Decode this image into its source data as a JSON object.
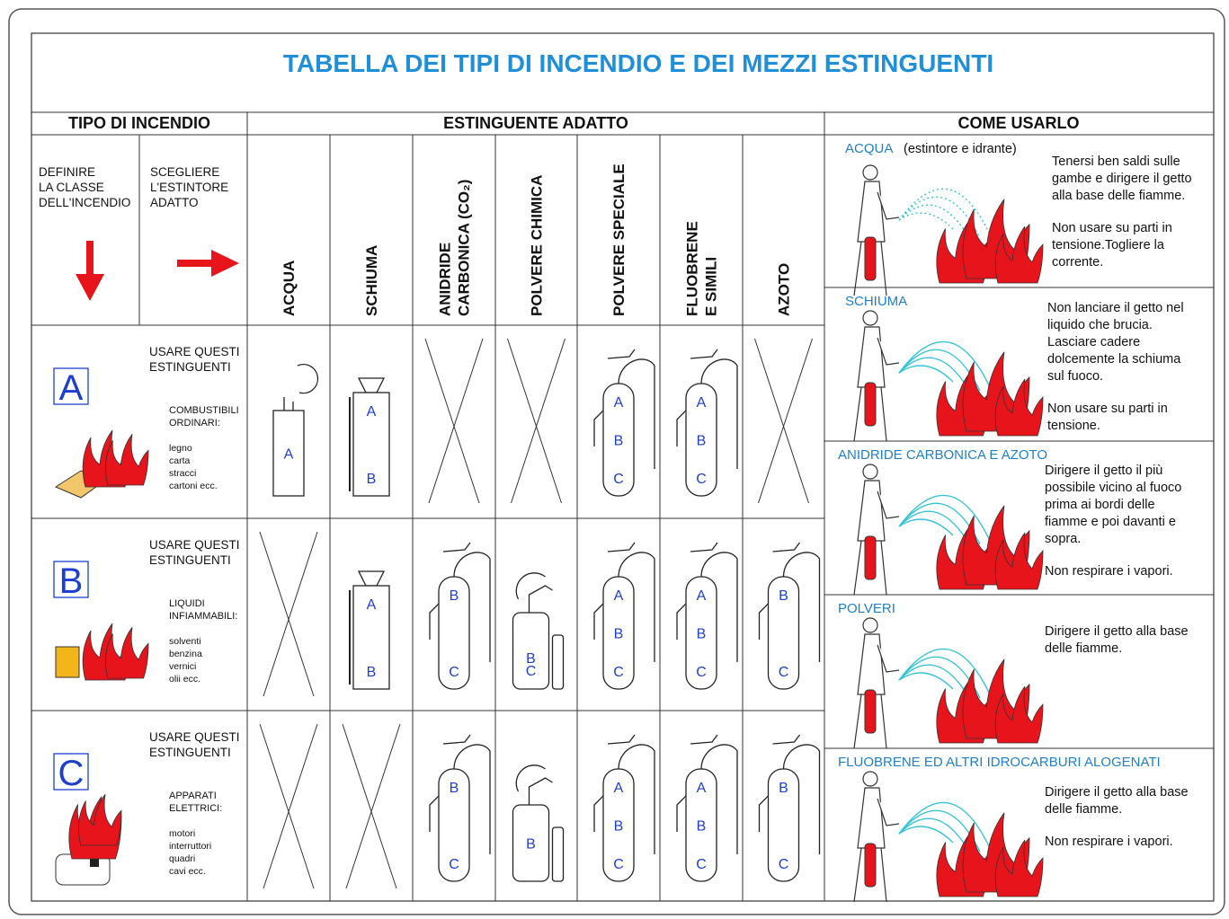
{
  "header": {
    "title": "TABELLA DEI TIPI DI INCENDIO E DEI MEZZI ESTINGUENTI"
  },
  "table": {
    "headers": [
      "TIPO DI INCENDIO",
      "ESTINGUENTE ADATTO",
      "COME USARLO"
    ],
    "instructions": [
      {
        "lines": [
          "DEFINIRE",
          "LA CLASSE",
          "DELL'INCENDIO"
        ]
      },
      {
        "lines": [
          "SCEGLIERE",
          "L'ESTINTORE",
          "ADATTO"
        ]
      }
    ],
    "agents": [
      {
        "lines": [
          "ACQUA"
        ]
      },
      {
        "lines": [
          "SCHIUMA"
        ]
      },
      {
        "lines": [
          "ANIDRIDE",
          "CARBONICA (CO₂)"
        ]
      },
      {
        "lines": [
          "POLVERE CHIMICA"
        ]
      },
      {
        "lines": [
          "POLVERE SPECIALE"
        ]
      },
      {
        "lines": [
          "FLUOBRENE",
          "E SIMILI"
        ]
      },
      {
        "lines": [
          "AZOTO"
        ]
      }
    ],
    "classes": [
      {
        "letter": "A",
        "use": [
          "USARE QUESTI",
          "ESTINGUENTI"
        ],
        "category": [
          "COMBUSTIBILI",
          "ORDINARI:"
        ],
        "examples": [
          "legno",
          "carta",
          "stracci",
          "cartoni ecc."
        ],
        "cells": [
          [
            "A"
          ],
          [
            "A",
            "B"
          ],
          null,
          null,
          [
            "A",
            "B",
            "C"
          ],
          [
            "A",
            "B",
            "C"
          ],
          null
        ]
      },
      {
        "letter": "B",
        "use": [
          "USARE QUESTI",
          "ESTINGUENTI"
        ],
        "category": [
          "LIQUIDI",
          "INFIAMMABILI:"
        ],
        "examples": [
          "solventi",
          "benzina",
          "vernici",
          "olii ecc."
        ],
        "cells": [
          null,
          [
            "A",
            "B"
          ],
          [
            "B",
            "C"
          ],
          [
            "B",
            "C"
          ],
          [
            "A",
            "B",
            "C"
          ],
          [
            "A",
            "B",
            "C"
          ],
          [
            "B",
            "C"
          ]
        ]
      },
      {
        "letter": "C",
        "use": [
          "USARE QUESTI",
          "ESTINGUENTI"
        ],
        "category": [
          "APPARATI",
          "ELETTRICI:"
        ],
        "examples": [
          "motori",
          "interruttori",
          "quadri",
          "cavi ecc."
        ],
        "cells": [
          null,
          null,
          [
            "B",
            "C"
          ],
          [
            "B"
          ],
          [
            "A",
            "B",
            "C"
          ],
          [
            "A",
            "B",
            "C"
          ],
          [
            "B",
            "C"
          ]
        ]
      }
    ]
  },
  "usage": [
    {
      "title": "ACQUA",
      "subtitle": "(estintore e idrante)",
      "paragraphs": [
        [
          "Tenersi ben saldi sulle",
          "gambe e dirigere il getto",
          "alla base delle fiamme."
        ],
        [
          "Non usare su parti in",
          "tensione.Togliere la",
          "corrente."
        ]
      ]
    },
    {
      "title": "SCHIUMA",
      "paragraphs": [
        [
          "Non lanciare il getto nel",
          "liquido che brucia.",
          "Lasciare cadere",
          "dolcemente la schiuma",
          "sul fuoco."
        ],
        [
          "Non usare su parti in",
          "tensione."
        ]
      ]
    },
    {
      "title": "ANIDRIDE CARBONICA E AZOTO",
      "paragraphs": [
        [
          "Dirigere il getto il più",
          "possibile vicino al fuoco",
          "prima ai bordi delle",
          "fiamme e poi davanti e",
          "sopra."
        ],
        [
          "Non respirare i vapori."
        ]
      ]
    },
    {
      "title": "POLVERI",
      "paragraphs": [
        [
          "Dirigere il getto alla base",
          "delle fiamme."
        ]
      ]
    },
    {
      "title": "FLUOBRENE ED ALTRI IDROCARBURI ALOGENATI",
      "paragraphs": [
        [
          "Dirigere il getto alla base",
          "delle fiamme."
        ],
        [
          "Non respirare i vapori."
        ]
      ]
    }
  ]
}
